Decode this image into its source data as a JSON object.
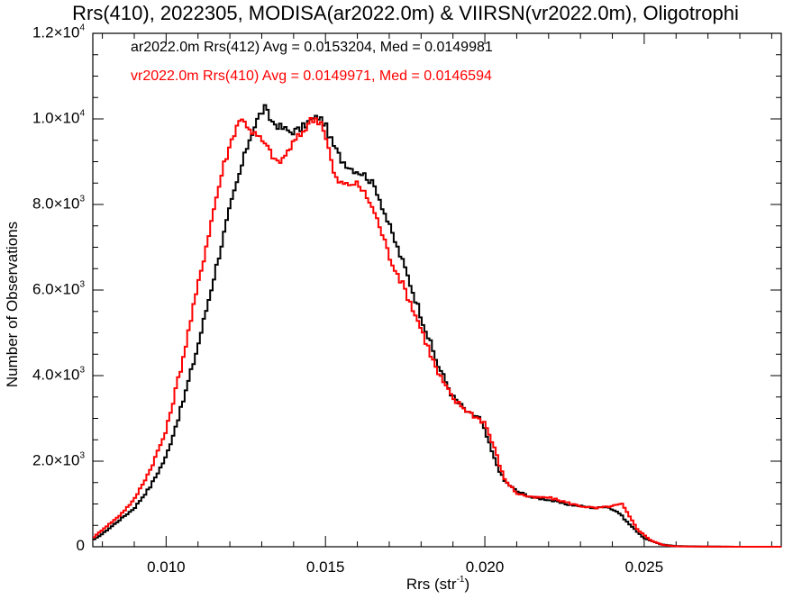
{
  "chart_data": {
    "type": "line",
    "title": "Rrs(410), 2022305, MODISA(ar2022.0m) & VIIRSN(vr2022.0m), Oligotrophi",
    "xlabel": "Rrs (str",
    "xlabel_sup": "-1",
    "xlabel_end": ")",
    "ylabel": "Number of Observations",
    "xlim": [
      0.0077,
      0.0293
    ],
    "ylim": [
      0,
      12000
    ],
    "x_ticks": [
      "0.010",
      "0.015",
      "0.020",
      "0.025"
    ],
    "x_tick_values": [
      0.01,
      0.015,
      0.02,
      0.025
    ],
    "y_ticks": [
      {
        "value": 0,
        "base": "0",
        "exp": ""
      },
      {
        "value": 2000,
        "base": "2.0×10",
        "exp": "3"
      },
      {
        "value": 4000,
        "base": "4.0×10",
        "exp": "3"
      },
      {
        "value": 6000,
        "base": "6.0×10",
        "exp": "3"
      },
      {
        "value": 8000,
        "base": "8.0×10",
        "exp": "3"
      },
      {
        "value": 10000,
        "base": "1.0×10",
        "exp": "4"
      },
      {
        "value": 12000,
        "base": "1.2×10",
        "exp": "4"
      }
    ],
    "legend": [
      "ar2022.0m Rrs(412) Avg = 0.0153204, Med = 0.0149981",
      "vr2022.0m Rrs(410) Avg = 0.0149971, Med = 0.0146594"
    ],
    "grid": false,
    "series": [
      {
        "name": "ar2022.0m Rrs(412)",
        "color": "#000000",
        "x": [
          0.0077,
          0.008,
          0.0085,
          0.009,
          0.0095,
          0.01,
          0.0105,
          0.011,
          0.0115,
          0.012,
          0.0123,
          0.0126,
          0.0129,
          0.0131,
          0.0133,
          0.0136,
          0.0139,
          0.0142,
          0.0145,
          0.0148,
          0.015,
          0.0152,
          0.0155,
          0.0158,
          0.0161,
          0.0163,
          0.0166,
          0.017,
          0.0175,
          0.018,
          0.0185,
          0.019,
          0.0195,
          0.0198,
          0.02,
          0.0203,
          0.0206,
          0.021,
          0.0215,
          0.022,
          0.0225,
          0.023,
          0.0235,
          0.0238,
          0.0242,
          0.0245,
          0.025,
          0.0255,
          0.026,
          0.027,
          0.028,
          0.0293
        ],
        "values": [
          150,
          300,
          600,
          900,
          1400,
          2100,
          3300,
          4700,
          6300,
          7900,
          8700,
          9500,
          10050,
          10250,
          9950,
          9800,
          9700,
          9750,
          9950,
          10050,
          9850,
          9450,
          9050,
          8850,
          8750,
          8650,
          8350,
          7500,
          6500,
          5400,
          4300,
          3500,
          3100,
          3050,
          2700,
          2050,
          1550,
          1300,
          1150,
          1100,
          1000,
          950,
          900,
          950,
          800,
          550,
          200,
          60,
          15,
          5,
          0,
          0
        ]
      },
      {
        "name": "vr2022.0m Rrs(410)",
        "color": "#ff0000",
        "x": [
          0.0077,
          0.008,
          0.0085,
          0.009,
          0.0095,
          0.01,
          0.0105,
          0.011,
          0.0115,
          0.0118,
          0.0121,
          0.0123,
          0.0125,
          0.0127,
          0.013,
          0.0133,
          0.0135,
          0.0137,
          0.014,
          0.0143,
          0.0145,
          0.0147,
          0.0149,
          0.0151,
          0.0153,
          0.0156,
          0.0159,
          0.0161,
          0.0164,
          0.0167,
          0.017,
          0.0175,
          0.018,
          0.0185,
          0.019,
          0.0195,
          0.0198,
          0.02,
          0.0203,
          0.0206,
          0.021,
          0.0215,
          0.022,
          0.0225,
          0.023,
          0.0235,
          0.024,
          0.0243,
          0.0245,
          0.0248,
          0.0252,
          0.0256,
          0.026,
          0.027,
          0.028,
          0.0293
        ],
        "values": [
          200,
          400,
          700,
          1100,
          1800,
          2700,
          4300,
          6100,
          7900,
          8900,
          9600,
          10000,
          9900,
          9700,
          9500,
          9200,
          8950,
          9100,
          9450,
          9700,
          9950,
          10000,
          9900,
          9300,
          8600,
          8450,
          8500,
          8400,
          8050,
          7500,
          6800,
          6000,
          5100,
          4100,
          3450,
          3150,
          3000,
          2900,
          2300,
          1600,
          1250,
          1150,
          1150,
          1050,
          950,
          900,
          950,
          1000,
          750,
          400,
          150,
          40,
          10,
          3,
          0,
          0
        ]
      }
    ]
  }
}
